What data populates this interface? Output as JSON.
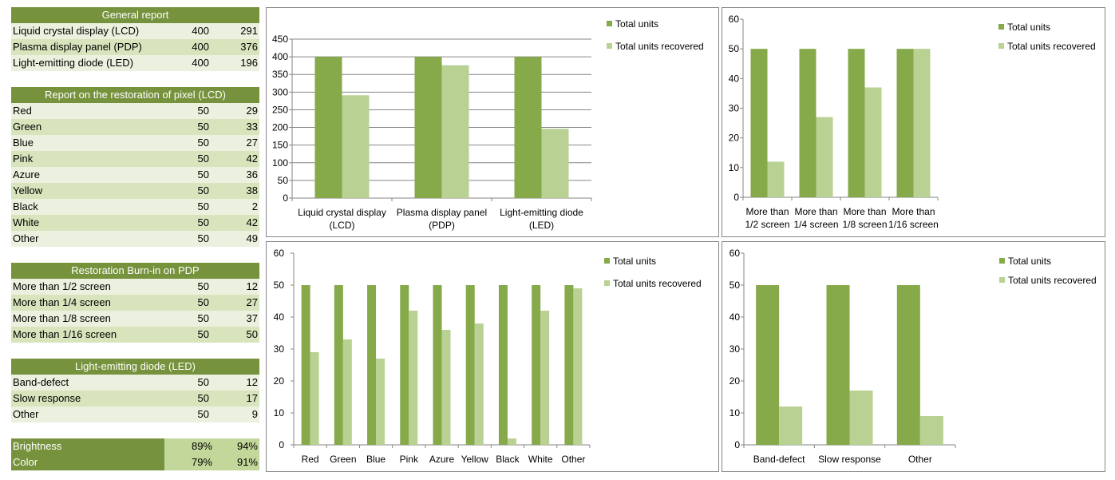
{
  "colors": {
    "header_bg": "#76923c",
    "row_light": "#ebf1de",
    "row_dark": "#d8e4bc",
    "metric_bg": "#c4d79b",
    "series_total": "#86a94a",
    "series_recovered": "#b9d193"
  },
  "tables": {
    "general": {
      "title": "General report",
      "rows": [
        {
          "label": "Liquid crystal display (LCD)",
          "total": "400",
          "recovered": "291"
        },
        {
          "label": "Plasma display panel (PDP)",
          "total": "400",
          "recovered": "376"
        },
        {
          "label": "Light-emitting diode (LED)",
          "total": "400",
          "recovered": "196"
        }
      ]
    },
    "lcd": {
      "title": "Report on the restoration of pixel (LCD)",
      "rows": [
        {
          "label": "Red",
          "total": "50",
          "recovered": "29"
        },
        {
          "label": "Green",
          "total": "50",
          "recovered": "33"
        },
        {
          "label": "Blue",
          "total": "50",
          "recovered": "27"
        },
        {
          "label": "Pink",
          "total": "50",
          "recovered": "42"
        },
        {
          "label": "Azure",
          "total": "50",
          "recovered": "36"
        },
        {
          "label": "Yellow",
          "total": "50",
          "recovered": "38"
        },
        {
          "label": "Black",
          "total": "50",
          "recovered": "2"
        },
        {
          "label": "White",
          "total": "50",
          "recovered": "42"
        },
        {
          "label": "Other",
          "total": "50",
          "recovered": "49"
        }
      ]
    },
    "pdp": {
      "title": "Restoration Burn-in on PDP",
      "rows": [
        {
          "label": "More than 1/2 screen",
          "total": "50",
          "recovered": "12"
        },
        {
          "label": "More than 1/4 screen",
          "total": "50",
          "recovered": "27"
        },
        {
          "label": "More than 1/8 screen",
          "total": "50",
          "recovered": "37"
        },
        {
          "label": "More than 1/16 screen",
          "total": "50",
          "recovered": "50"
        }
      ]
    },
    "led": {
      "title": "Light-emitting diode (LED)",
      "rows": [
        {
          "label": "Band-defect",
          "total": "50",
          "recovered": "12"
        },
        {
          "label": "Slow response",
          "total": "50",
          "recovered": "17"
        },
        {
          "label": "Other",
          "total": "50",
          "recovered": "9"
        }
      ]
    },
    "metrics": {
      "rows": [
        {
          "label": "Brightness",
          "a": "89%",
          "b": "94%"
        },
        {
          "label": "Color",
          "a": "79%",
          "b": "91%"
        }
      ]
    }
  },
  "chart_data": [
    {
      "type": "bar",
      "categories": [
        "Liquid crystal display (LCD)",
        "Plasma display panel (PDP)",
        "Light-emitting diode (LED)"
      ],
      "category_lines": [
        [
          "Liquid crystal display",
          "(LCD)"
        ],
        [
          "Plasma display panel",
          "(PDP)"
        ],
        [
          "Light-emitting diode",
          "(LED)"
        ]
      ],
      "series": [
        {
          "name": "Total units",
          "values": [
            400,
            400,
            400
          ]
        },
        {
          "name": "Total units recovered",
          "values": [
            291,
            376,
            196
          ]
        }
      ],
      "ylim": [
        0,
        450
      ],
      "yticks": [
        "0",
        "50",
        "100",
        "150",
        "200",
        "250",
        "300",
        "350",
        "400",
        "450"
      ],
      "legend": "right",
      "grid": true
    },
    {
      "type": "bar",
      "categories": [
        "More than 1/2 screen",
        "More than 1/4 screen",
        "More than 1/8 screen",
        "More than 1/16 screen"
      ],
      "category_lines": [
        [
          "More than",
          "1/2 screen"
        ],
        [
          "More than",
          "1/4 screen"
        ],
        [
          "More than",
          "1/8 screen"
        ],
        [
          "More than",
          "1/16 screen"
        ]
      ],
      "series": [
        {
          "name": "Total units",
          "values": [
            50,
            50,
            50,
            50
          ]
        },
        {
          "name": "Total units recovered",
          "values": [
            12,
            27,
            37,
            50
          ]
        }
      ],
      "ylim": [
        0,
        60
      ],
      "yticks": [
        "0",
        "10",
        "20",
        "30",
        "40",
        "50",
        "60"
      ],
      "legend": "right",
      "grid": false
    },
    {
      "type": "bar",
      "categories": [
        "Red",
        "Green",
        "Blue",
        "Pink",
        "Azure",
        "Yellow",
        "Black",
        "White",
        "Other"
      ],
      "category_lines": [
        [
          "Red"
        ],
        [
          "Green"
        ],
        [
          "Blue"
        ],
        [
          "Pink"
        ],
        [
          "Azure"
        ],
        [
          "Yellow"
        ],
        [
          "Black"
        ],
        [
          "White"
        ],
        [
          "Other"
        ]
      ],
      "series": [
        {
          "name": "Total units",
          "values": [
            50,
            50,
            50,
            50,
            50,
            50,
            50,
            50,
            50
          ]
        },
        {
          "name": "Total units recovered",
          "values": [
            29,
            33,
            27,
            42,
            36,
            38,
            2,
            42,
            49
          ]
        }
      ],
      "ylim": [
        0,
        60
      ],
      "yticks": [
        "0",
        "10",
        "20",
        "30",
        "40",
        "50",
        "60"
      ],
      "legend": "right",
      "grid": false
    },
    {
      "type": "bar",
      "categories": [
        "Band-defect",
        "Slow response",
        "Other"
      ],
      "category_lines": [
        [
          "Band-defect"
        ],
        [
          "Slow response"
        ],
        [
          "Other"
        ]
      ],
      "series": [
        {
          "name": "Total units",
          "values": [
            50,
            50,
            50
          ]
        },
        {
          "name": "Total units recovered",
          "values": [
            12,
            17,
            9
          ]
        }
      ],
      "ylim": [
        0,
        60
      ],
      "yticks": [
        "0",
        "10",
        "20",
        "30",
        "40",
        "50",
        "60"
      ],
      "legend": "right",
      "grid": false
    }
  ]
}
